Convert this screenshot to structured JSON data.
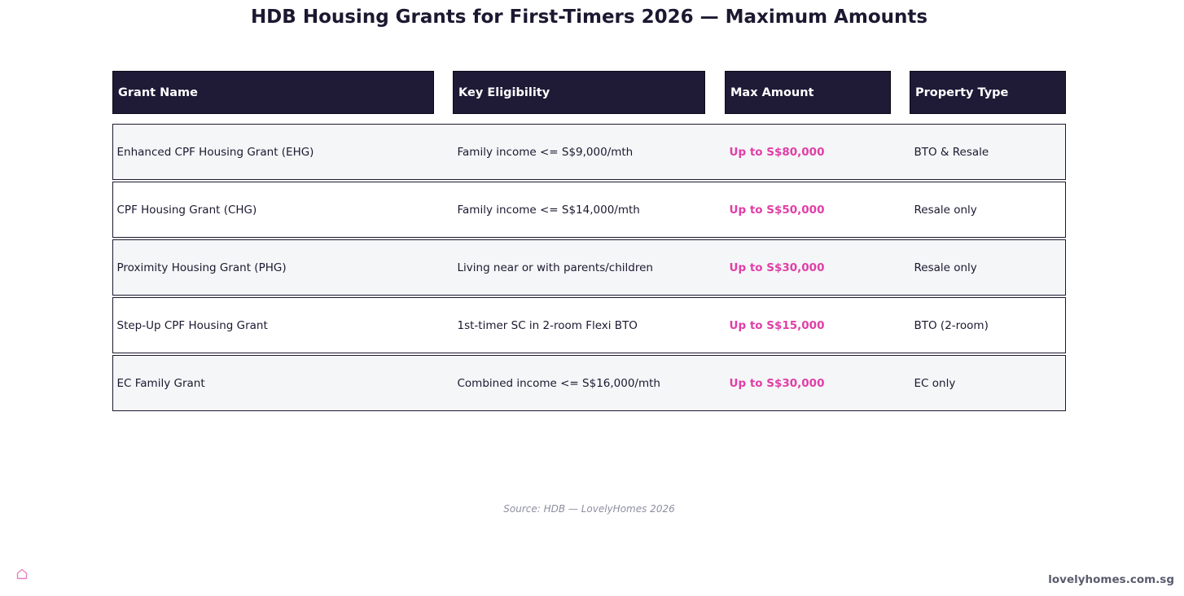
{
  "title": "HDB Housing Grants for First-Timers 2026 — Maximum Amounts",
  "chart_data": {
    "type": "table",
    "columns": [
      "Grant Name",
      "Key Eligibility",
      "Max Amount",
      "Property Type"
    ],
    "rows": [
      [
        "Enhanced CPF Housing Grant (EHG)",
        "Family income <= S$9,000/mth",
        "Up to S$80,000",
        "BTO & Resale"
      ],
      [
        "CPF Housing Grant (CHG)",
        "Family income <= S$14,000/mth",
        "Up to S$50,000",
        "Resale only"
      ],
      [
        "Proximity Housing Grant (PHG)",
        "Living near or with parents/children",
        "Up to S$30,000",
        "Resale only"
      ],
      [
        "Step-Up CPF Housing Grant",
        "1st-timer SC in 2-room Flexi BTO",
        "Up to S$15,000",
        "BTO (2-room)"
      ],
      [
        "EC Family Grant",
        "Combined income <= S$16,000/mth",
        "Up to S$30,000",
        "EC only"
      ]
    ]
  },
  "source": "Source: HDB — LovelyHomes 2026",
  "footer": {
    "logo_icon": "house-icon",
    "site": "lovelyhomes.com.sg"
  },
  "colors": {
    "header_bg": "#1f1a36",
    "amount": "#e03fa6",
    "row_shaded": "#f5f6f8",
    "logo": "#e67fbf"
  }
}
